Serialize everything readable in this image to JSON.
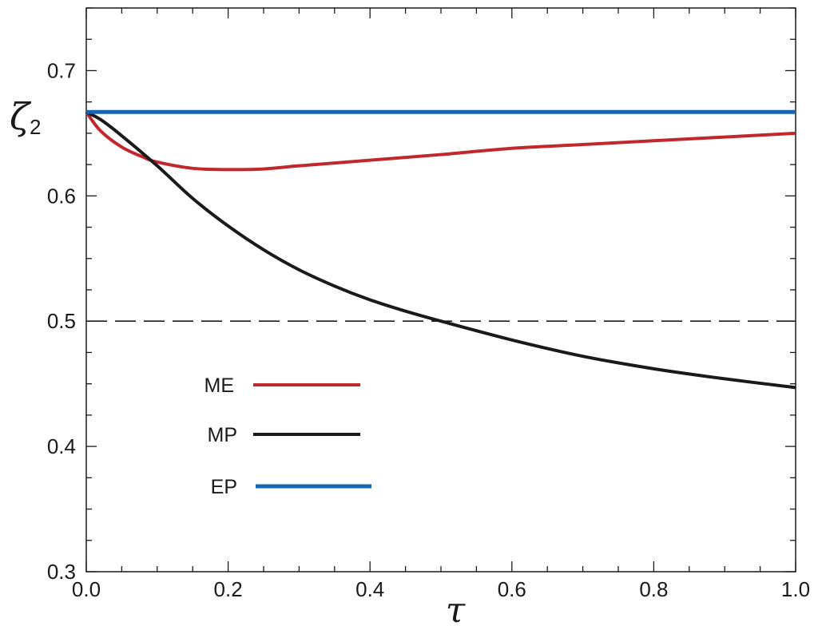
{
  "chart_data": {
    "type": "line",
    "title": "",
    "xlabel": "τ",
    "ylabel": "ζ",
    "ylabel_subscript": "2",
    "xlim": [
      0.0,
      1.0
    ],
    "ylim": [
      0.3,
      0.75
    ],
    "grid": false,
    "legend_position": "lower-left (inside plot)",
    "x_ticks": [
      0.0,
      0.2,
      0.4,
      0.6,
      0.8,
      1.0
    ],
    "x_tick_labels": [
      "0.0",
      "0.2",
      "0.4",
      "0.6",
      "0.8",
      "1.0"
    ],
    "y_ticks": [
      0.3,
      0.4,
      0.5,
      0.6,
      0.7
    ],
    "y_tick_labels": [
      "0.3",
      "0.4",
      "0.5",
      "0.6",
      "0.7"
    ],
    "series": [
      {
        "name": "ME",
        "color": "#c0282d",
        "x": [
          0.0,
          0.02,
          0.05,
          0.08,
          0.1,
          0.15,
          0.2,
          0.25,
          0.3,
          0.4,
          0.5,
          0.6,
          0.7,
          0.8,
          0.9,
          1.0
        ],
        "y": [
          0.667,
          0.652,
          0.639,
          0.631,
          0.627,
          0.622,
          0.621,
          0.6215,
          0.624,
          0.6285,
          0.633,
          0.638,
          0.641,
          0.644,
          0.647,
          0.65
        ]
      },
      {
        "name": "MP",
        "color": "#1a1a1a",
        "x": [
          0.0,
          0.02,
          0.05,
          0.1,
          0.15,
          0.2,
          0.25,
          0.3,
          0.35,
          0.4,
          0.45,
          0.5,
          0.6,
          0.7,
          0.8,
          0.9,
          1.0
        ],
        "y": [
          0.667,
          0.661,
          0.648,
          0.624,
          0.598,
          0.576,
          0.557,
          0.541,
          0.528,
          0.517,
          0.508,
          0.5,
          0.485,
          0.472,
          0.462,
          0.454,
          0.447
        ]
      },
      {
        "name": "EP",
        "color": "#1565b0",
        "x": [
          0.0,
          1.0
        ],
        "y": [
          0.667,
          0.667
        ]
      }
    ],
    "reference_lines": [
      {
        "y": 0.5,
        "style": "dashed",
        "color": "#1a1a1a"
      }
    ]
  }
}
